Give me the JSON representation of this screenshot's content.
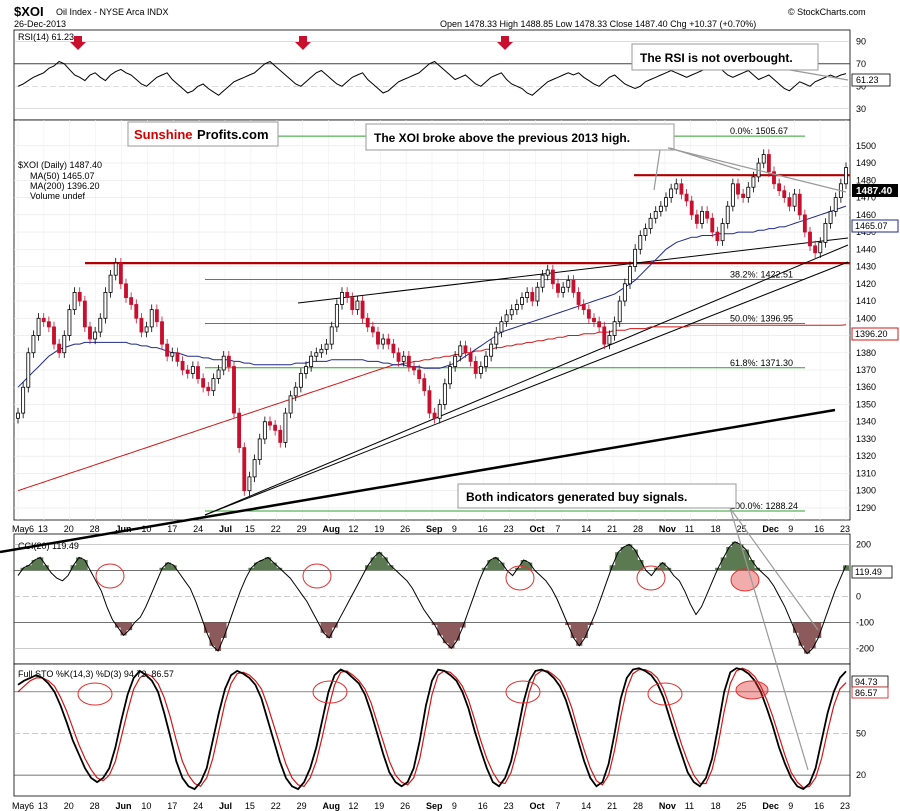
{
  "header": {
    "symbol": "$XOI",
    "name": "Oil Index - NYSE Arca INDX",
    "date": "26-Dec-2013",
    "ohlc": "Open 1478.33  High 1488.85  Low 1478.33  Close 1487.40  Chg +10.37 (+0.70%)",
    "watermark": "© StockCharts.com"
  },
  "brand": {
    "part1": "Sunshine",
    "part2": "Profits.com",
    "color1": "#d40000"
  },
  "callouts": {
    "rsi": "The RSI is not overbought.",
    "price": "The XOI broke above the previous 2013 high.",
    "indicators": "Both indicators generated buy signals."
  },
  "colors": {
    "up": "#000000",
    "down": "#c8102e",
    "ma50": "#1f2a8c",
    "ma200": "#d01818",
    "fib": "#2ca02c",
    "resistance": "#b00000",
    "fill_pos": "#5b7a52",
    "fill_neg": "#8c5a5a",
    "ellipse": "#e03030"
  },
  "rsi": {
    "label": "RSI(14) 61.23",
    "value_tag": "61.23",
    "ticks": [
      "90",
      "70",
      "50",
      "30"
    ],
    "tick_values": [
      90,
      70,
      50,
      30
    ],
    "ylim": [
      20,
      100
    ],
    "values": [
      50,
      52,
      55,
      58,
      60,
      62,
      66,
      68,
      72,
      70,
      65,
      60,
      58,
      55,
      60,
      62,
      58,
      55,
      60,
      63,
      65,
      62,
      60,
      56,
      52,
      50,
      54,
      58,
      60,
      62,
      56,
      52,
      48,
      44,
      46,
      50,
      52,
      48,
      45,
      42,
      46,
      50,
      54,
      56,
      58,
      60,
      62,
      66,
      70,
      72,
      68,
      64,
      60,
      56,
      52,
      50,
      54,
      58,
      62,
      64,
      60,
      56,
      52,
      50,
      54,
      58,
      60,
      62,
      56,
      52,
      48,
      44,
      46,
      50,
      54,
      56,
      58,
      60,
      62,
      66,
      70,
      72,
      68,
      64,
      60,
      56,
      58,
      60,
      56,
      52,
      50,
      54,
      58,
      60,
      62,
      56,
      52,
      50,
      48,
      44,
      42,
      46,
      50,
      54,
      56,
      58,
      60,
      62,
      60,
      62,
      58,
      55,
      52,
      50,
      54,
      58,
      60,
      56,
      52,
      50,
      48,
      50,
      54,
      56,
      58,
      60,
      62,
      64,
      62,
      60,
      58,
      60,
      62,
      64,
      66,
      70,
      68,
      64,
      60,
      58,
      60,
      62,
      64,
      60,
      56,
      58,
      60,
      56,
      52,
      48,
      46,
      50,
      54,
      52,
      50,
      54,
      56,
      58,
      60,
      58,
      60,
      61.23
    ]
  },
  "price": {
    "label": "$XOI (Daily) 1487.40",
    "ma50_label": "MA(50) 1465.07",
    "ma200_label": "MA(200) 1396.20",
    "volume_label": "Volume undef",
    "ylim": [
      1283,
      1515
    ],
    "ticks": [
      "1500",
      "1490",
      "1480",
      "1470",
      "1460",
      "1450",
      "1440",
      "1430",
      "1420",
      "1410",
      "1400",
      "1390",
      "1380",
      "1370",
      "1360",
      "1350",
      "1340",
      "1330",
      "1320",
      "1310",
      "1300",
      "1290"
    ],
    "tick_values": [
      1500,
      1490,
      1480,
      1470,
      1460,
      1450,
      1440,
      1430,
      1420,
      1410,
      1400,
      1390,
      1380,
      1370,
      1360,
      1350,
      1340,
      1330,
      1320,
      1310,
      1300,
      1290
    ],
    "close_tag": "1487.40",
    "ma50_tag": "1465.07",
    "ma200_tag": "1396.20",
    "closes": [
      1345,
      1360,
      1380,
      1390,
      1400,
      1398,
      1395,
      1385,
      1380,
      1390,
      1405,
      1415,
      1410,
      1395,
      1388,
      1392,
      1400,
      1415,
      1425,
      1432,
      1420,
      1412,
      1408,
      1400,
      1392,
      1395,
      1405,
      1398,
      1385,
      1378,
      1380,
      1375,
      1370,
      1368,
      1372,
      1365,
      1360,
      1358,
      1365,
      1370,
      1378,
      1372,
      1345,
      1325,
      1300,
      1308,
      1318,
      1330,
      1340,
      1338,
      1335,
      1328,
      1345,
      1355,
      1360,
      1368,
      1372,
      1378,
      1380,
      1382,
      1385,
      1395,
      1408,
      1415,
      1412,
      1405,
      1410,
      1400,
      1395,
      1392,
      1385,
      1388,
      1385,
      1380,
      1375,
      1378,
      1372,
      1370,
      1365,
      1358,
      1345,
      1342,
      1350,
      1362,
      1372,
      1378,
      1384,
      1380,
      1375,
      1368,
      1372,
      1378,
      1385,
      1392,
      1398,
      1402,
      1405,
      1408,
      1412,
      1415,
      1410,
      1418,
      1425,
      1428,
      1420,
      1415,
      1418,
      1422,
      1415,
      1408,
      1405,
      1400,
      1398,
      1395,
      1385,
      1390,
      1398,
      1410,
      1420,
      1430,
      1440,
      1448,
      1452,
      1458,
      1462,
      1465,
      1470,
      1475,
      1478,
      1472,
      1468,
      1460,
      1455,
      1462,
      1458,
      1450,
      1445,
      1455,
      1465,
      1478,
      1472,
      1470,
      1476,
      1482,
      1490,
      1495,
      1485,
      1478,
      1474,
      1470,
      1465,
      1472,
      1460,
      1450,
      1442,
      1438,
      1444,
      1455,
      1462,
      1470,
      1478,
      1487.4
    ],
    "ma50": [
      1360,
      1363,
      1366,
      1369,
      1372,
      1375,
      1378,
      1380,
      1382,
      1383,
      1384,
      1385,
      1385,
      1386,
      1386,
      1386,
      1386,
      1386,
      1386,
      1386,
      1386,
      1386,
      1385,
      1385,
      1384,
      1384,
      1383,
      1383,
      1382,
      1381,
      1380,
      1380,
      1379,
      1378,
      1378,
      1378,
      1377,
      1377,
      1376,
      1376,
      1376,
      1376,
      1375,
      1375,
      1374,
      1374,
      1373,
      1373,
      1373,
      1373,
      1373,
      1373,
      1373,
      1373,
      1374,
      1374,
      1374,
      1375,
      1375,
      1375,
      1375,
      1376,
      1376,
      1376,
      1376,
      1376,
      1376,
      1376,
      1375,
      1375,
      1375,
      1374,
      1374,
      1373,
      1373,
      1373,
      1372,
      1372,
      1372,
      1371,
      1371,
      1371,
      1371,
      1372,
      1373,
      1374,
      1376,
      1378,
      1380,
      1382,
      1384,
      1386,
      1388,
      1390,
      1392,
      1393,
      1394,
      1395,
      1396,
      1397,
      1398,
      1399,
      1400,
      1401,
      1402,
      1403,
      1404,
      1405,
      1406,
      1407,
      1408,
      1409,
      1410,
      1411,
      1412,
      1413,
      1414,
      1416,
      1418,
      1420,
      1422,
      1425,
      1428,
      1431,
      1434,
      1437,
      1440,
      1442,
      1444,
      1445,
      1446,
      1447,
      1447,
      1448,
      1448,
      1448,
      1449,
      1449,
      1449,
      1449,
      1450,
      1450,
      1450,
      1450,
      1451,
      1451,
      1452,
      1452,
      1453,
      1453,
      1454,
      1455,
      1456,
      1457,
      1458,
      1459,
      1460,
      1461,
      1462,
      1463,
      1464,
      1465.07
    ],
    "ma200": [
      1300,
      1301,
      1302,
      1303,
      1304,
      1305,
      1306,
      1307,
      1308,
      1309,
      1310,
      1311,
      1312,
      1313,
      1314,
      1315,
      1316,
      1317,
      1318,
      1319,
      1320,
      1321,
      1322,
      1323,
      1324,
      1325,
      1326,
      1327,
      1328,
      1329,
      1330,
      1331,
      1332,
      1333,
      1334,
      1335,
      1336,
      1337,
      1338,
      1339,
      1340,
      1341,
      1342,
      1343,
      1344,
      1345,
      1346,
      1347,
      1348,
      1349,
      1350,
      1351,
      1352,
      1353,
      1354,
      1355,
      1356,
      1357,
      1358,
      1359,
      1360,
      1361,
      1362,
      1363,
      1364,
      1365,
      1366,
      1367,
      1368,
      1369,
      1370,
      1371,
      1372,
      1373,
      1373,
      1374,
      1374,
      1375,
      1375,
      1376,
      1376,
      1377,
      1377,
      1378,
      1378,
      1379,
      1379,
      1380,
      1380,
      1381,
      1381,
      1382,
      1382,
      1383,
      1383,
      1384,
      1384,
      1385,
      1385,
      1386,
      1386,
      1387,
      1387,
      1388,
      1388,
      1389,
      1389,
      1390,
      1390,
      1390,
      1391,
      1391,
      1391,
      1392,
      1392,
      1392,
      1393,
      1393,
      1393,
      1394,
      1394,
      1394,
      1394,
      1395,
      1395,
      1395,
      1395,
      1395,
      1395,
      1395,
      1395,
      1396,
      1396,
      1396,
      1396,
      1396,
      1396,
      1396,
      1396,
      1396,
      1396,
      1396,
      1396,
      1396,
      1396,
      1396,
      1396,
      1396,
      1396,
      1396,
      1396,
      1396,
      1396,
      1396,
      1396,
      1396,
      1396,
      1396,
      1396,
      1396,
      1396,
      1396.2
    ],
    "fib_levels": [
      {
        "value": 1505.67,
        "label": "0.0%: 1505.67"
      },
      {
        "value": 1422.51,
        "label": "38.2%: 1422.51"
      },
      {
        "value": 1396.95,
        "label": "50.0%: 1396.95"
      },
      {
        "value": 1371.3,
        "label": "61.8%: 1371.30"
      },
      {
        "value": 1288.24,
        "label": "100.0%: 1288.24"
      }
    ],
    "resistance_levels": [
      1432,
      1483
    ]
  },
  "xaxis": {
    "labels": [
      "May6",
      "13",
      "20",
      "28",
      "Jun",
      "10",
      "17",
      "24",
      "Jul",
      "15",
      "22",
      "29",
      "Aug",
      "12",
      "19",
      "26",
      "Sep",
      "9",
      "16",
      "23",
      "Oct",
      "7",
      "14",
      "21",
      "28",
      "Nov",
      "11",
      "18",
      "25",
      "Dec",
      "9",
      "16",
      "23"
    ],
    "bold": [
      "Jun",
      "Jul",
      "Aug",
      "Sep",
      "Oct",
      "Nov",
      "Dec"
    ]
  },
  "cci": {
    "label": "CCI(20) 119.49",
    "value_tag": "119.49",
    "ticks": [
      "200",
      "100",
      "0",
      "-100",
      "-200"
    ],
    "tick_values": [
      200,
      100,
      0,
      -100,
      -200
    ],
    "ylim": [
      -260,
      240
    ],
    "values": [
      80,
      110,
      120,
      140,
      150,
      120,
      90,
      70,
      60,
      80,
      120,
      150,
      140,
      100,
      60,
      20,
      -40,
      -90,
      -120,
      -150,
      -130,
      -100,
      -80,
      -40,
      10,
      60,
      110,
      130,
      120,
      90,
      60,
      30,
      -20,
      -80,
      -140,
      -190,
      -210,
      -160,
      -100,
      -40,
      20,
      70,
      110,
      130,
      140,
      150,
      130,
      110,
      90,
      70,
      40,
      10,
      -20,
      -60,
      -100,
      -140,
      -160,
      -120,
      -80,
      -40,
      0,
      40,
      80,
      120,
      150,
      170,
      150,
      120,
      100,
      80,
      60,
      30,
      -10,
      -50,
      -80,
      -110,
      -150,
      -180,
      -200,
      -170,
      -120,
      -60,
      0,
      60,
      110,
      140,
      150,
      130,
      100,
      80,
      110,
      140,
      130,
      100,
      80,
      60,
      30,
      -10,
      -60,
      -110,
      -160,
      -190,
      -160,
      -110,
      -60,
      0,
      60,
      120,
      170,
      190,
      200,
      180,
      140,
      100,
      80,
      110,
      130,
      110,
      80,
      60,
      20,
      -30,
      -70,
      -40,
      10,
      60,
      110,
      150,
      190,
      210,
      200,
      180,
      140,
      110,
      90,
      70,
      40,
      0,
      -40,
      -90,
      -140,
      -190,
      -220,
      -200,
      -160,
      -100,
      -40,
      20,
      70,
      119.49
    ]
  },
  "sto": {
    "label": "Full STO %K(14,3) %D(3) 94.73, 86.57",
    "k_tag": "94.73",
    "d_tag": "86.57",
    "ticks": [
      "80",
      "50",
      "20"
    ],
    "tick_values": [
      80,
      50,
      20
    ],
    "ylim": [
      5,
      100
    ],
    "k": [
      85,
      88,
      90,
      92,
      90,
      86,
      80,
      70,
      58,
      45,
      35,
      25,
      18,
      15,
      18,
      25,
      40,
      60,
      78,
      90,
      95,
      92,
      88,
      80,
      65,
      48,
      30,
      18,
      12,
      10,
      15,
      25,
      45,
      65,
      82,
      92,
      95,
      93,
      90,
      85,
      75,
      60,
      45,
      30,
      18,
      12,
      10,
      15,
      25,
      40,
      60,
      80,
      92,
      96,
      94,
      90,
      86,
      78,
      65,
      50,
      35,
      22,
      15,
      12,
      15,
      25,
      45,
      70,
      88,
      96,
      95,
      92,
      88,
      80,
      68,
      52,
      38,
      25,
      15,
      12,
      18,
      30,
      50,
      72,
      88,
      95,
      96,
      94,
      90,
      84,
      74,
      60,
      45,
      30,
      18,
      12,
      15,
      28,
      50,
      75,
      90,
      96,
      97,
      95,
      92,
      86,
      76,
      62,
      48,
      35,
      22,
      15,
      12,
      18,
      32,
      55,
      80,
      94,
      97,
      96,
      93,
      88,
      80,
      68,
      55,
      40,
      28,
      18,
      12,
      10,
      14,
      25,
      45,
      65,
      80,
      90,
      94.73
    ],
    "d": [
      80,
      84,
      88,
      90,
      90,
      88,
      84,
      76,
      66,
      54,
      42,
      32,
      24,
      18,
      16,
      20,
      30,
      48,
      66,
      82,
      90,
      93,
      91,
      86,
      76,
      62,
      45,
      30,
      20,
      14,
      12,
      18,
      32,
      52,
      72,
      86,
      93,
      94,
      92,
      88,
      82,
      70,
      56,
      42,
      28,
      18,
      13,
      12,
      18,
      30,
      48,
      68,
      85,
      94,
      95,
      92,
      88,
      82,
      72,
      58,
      44,
      30,
      20,
      15,
      13,
      18,
      32,
      55,
      78,
      92,
      95,
      94,
      90,
      84,
      74,
      60,
      45,
      32,
      22,
      15,
      14,
      22,
      38,
      60,
      80,
      92,
      95,
      95,
      92,
      88,
      80,
      68,
      52,
      38,
      25,
      16,
      13,
      20,
      38,
      62,
      82,
      93,
      96,
      96,
      94,
      90,
      82,
      70,
      56,
      42,
      30,
      20,
      14,
      14,
      24,
      42,
      66,
      86,
      95,
      97,
      95,
      91,
      84,
      74,
      62,
      48,
      34,
      22,
      15,
      11,
      12,
      18,
      32,
      52,
      70,
      82,
      86.57
    ]
  }
}
